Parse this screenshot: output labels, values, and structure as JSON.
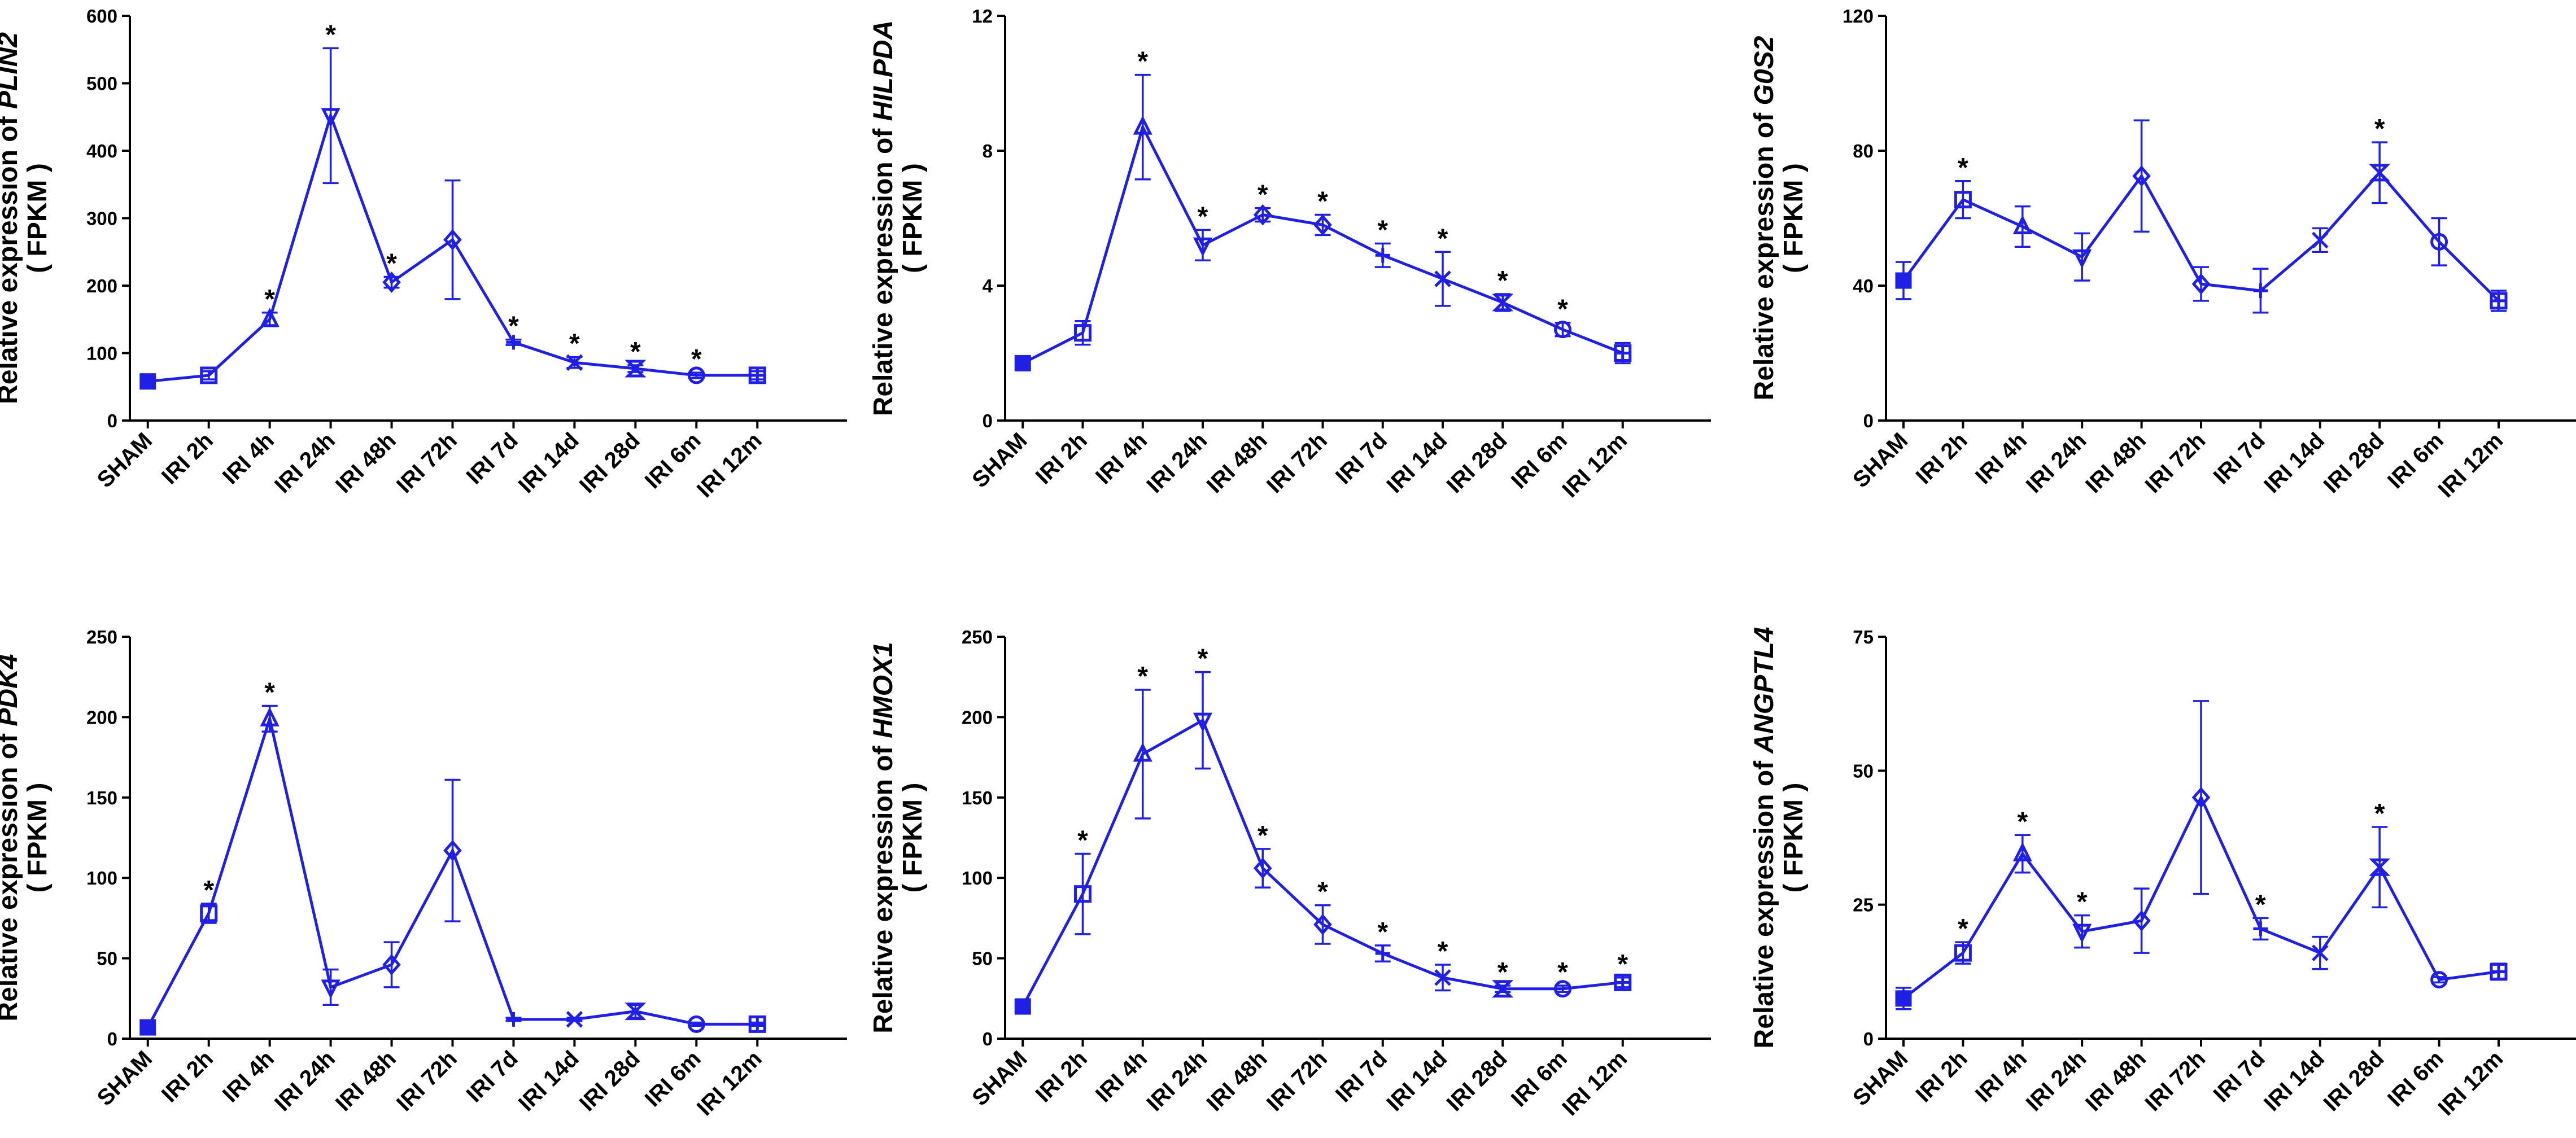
{
  "categories": [
    "SHAM",
    "IRI 2h",
    "IRI 4h",
    "IRI 24h",
    "IRI 48h",
    "IRI 72h",
    "IRI 7d",
    "IRI 14d",
    "IRI 28d",
    "IRI 6m",
    "IRI 12m"
  ],
  "colors": {
    "series": "#1f1fe6",
    "axis": "#000000"
  },
  "markers": [
    "square-filled",
    "square",
    "triangle-up",
    "triangle-down",
    "diamond",
    "diamond",
    "cross",
    "x",
    "hourglass",
    "circle",
    "square-cross"
  ],
  "chart_data": [
    {
      "type": "line",
      "ylabel_prefix": "Relative expression of ",
      "gene": "PLIN2",
      "ylabel_unit": "( FPKM )",
      "ylim": [
        0,
        600
      ],
      "yticks": [
        "0",
        "100",
        "200",
        "300",
        "400",
        "500",
        "600"
      ],
      "categories": [
        "SHAM",
        "IRI 2h",
        "IRI 4h",
        "IRI 24h",
        "IRI 48h",
        "IRI 72h",
        "IRI 7d",
        "IRI 14d",
        "IRI 28d",
        "IRI 6m",
        "IRI 12m"
      ],
      "values": [
        58,
        67,
        150,
        452,
        205,
        268,
        116,
        86,
        77,
        67,
        67
      ],
      "errors": [
        4,
        6,
        10,
        100,
        8,
        88,
        4,
        8,
        5,
        4,
        6
      ],
      "significant": [
        false,
        false,
        true,
        true,
        true,
        false,
        true,
        true,
        true,
        true,
        false
      ],
      "sig_label": "*"
    },
    {
      "type": "line",
      "ylabel_prefix": "Relative expression of ",
      "gene": "HILPDA",
      "ylabel_unit": "( FPKM )",
      "ylim": [
        0,
        12
      ],
      "yticks": [
        "0",
        "4",
        "8",
        "12"
      ],
      "categories": [
        "SHAM",
        "IRI 2h",
        "IRI 4h",
        "IRI 24h",
        "IRI 48h",
        "IRI 72h",
        "IRI 7d",
        "IRI 14d",
        "IRI 28d",
        "IRI 6m",
        "IRI 12m"
      ],
      "values": [
        1.7,
        2.6,
        8.7,
        5.2,
        6.1,
        5.8,
        4.9,
        4.2,
        3.5,
        2.7,
        2.0
      ],
      "errors": [
        0.1,
        0.35,
        1.55,
        0.45,
        0.2,
        0.3,
        0.35,
        0.8,
        0.25,
        0.2,
        0.3
      ],
      "significant": [
        false,
        false,
        true,
        true,
        true,
        true,
        true,
        true,
        true,
        true,
        false
      ],
      "sig_label": "*"
    },
    {
      "type": "line",
      "ylabel_prefix": "Relative expression of ",
      "gene": "G0S2",
      "ylabel_unit": "( FPKM )",
      "ylim": [
        0,
        120
      ],
      "yticks": [
        "0",
        "40",
        "80",
        "120"
      ],
      "categories": [
        "SHAM",
        "IRI 2h",
        "IRI 4h",
        "IRI 24h",
        "IRI 48h",
        "IRI 72h",
        "IRI 7d",
        "IRI 14d",
        "IRI 28d",
        "IRI 6m",
        "IRI 12m"
      ],
      "values": [
        41.5,
        65.5,
        57.5,
        48.5,
        72.5,
        40.5,
        38.5,
        53.5,
        73.5,
        53,
        35.5
      ],
      "errors": [
        5.5,
        5.5,
        6,
        7,
        16.5,
        5,
        6.5,
        3.5,
        9,
        7,
        3
      ],
      "significant": [
        false,
        true,
        false,
        false,
        false,
        false,
        false,
        false,
        true,
        false,
        false
      ],
      "sig_label": "*"
    },
    {
      "type": "line",
      "ylabel_prefix": "Relative expression of ",
      "gene": "PDK4",
      "ylabel_unit": "( FPKM )",
      "ylim": [
        0,
        250
      ],
      "yticks": [
        "0",
        "50",
        "100",
        "150",
        "200",
        "250"
      ],
      "categories": [
        "SHAM",
        "IRI 2h",
        "IRI 4h",
        "IRI 24h",
        "IRI 48h",
        "IRI 72h",
        "IRI 7d",
        "IRI 14d",
        "IRI 28d",
        "IRI 6m",
        "IRI 12m"
      ],
      "values": [
        7,
        78,
        199,
        32,
        46,
        117,
        12,
        12,
        17,
        9,
        9
      ],
      "errors": [
        1,
        6,
        8,
        11,
        14,
        44,
        1,
        1,
        4,
        1,
        1
      ],
      "significant": [
        false,
        true,
        true,
        false,
        false,
        false,
        false,
        false,
        false,
        false,
        false
      ],
      "sig_label": "*"
    },
    {
      "type": "line",
      "ylabel_prefix": "Relative expression of ",
      "gene": "HMOX1",
      "ylabel_unit": "( FPKM )",
      "ylim": [
        0,
        250
      ],
      "yticks": [
        "0",
        "50",
        "100",
        "150",
        "200",
        "250"
      ],
      "categories": [
        "SHAM",
        "IRI 2h",
        "IRI 4h",
        "IRI 24h",
        "IRI 48h",
        "IRI 72h",
        "IRI 7d",
        "IRI 14d",
        "IRI 28d",
        "IRI 6m",
        "IRI 12m"
      ],
      "values": [
        20,
        90,
        177,
        198,
        106,
        71,
        53,
        38,
        31,
        31,
        35
      ],
      "errors": [
        1,
        25,
        40,
        30,
        12,
        12,
        5,
        8,
        2,
        2,
        3
      ],
      "significant": [
        false,
        true,
        true,
        true,
        true,
        true,
        true,
        true,
        true,
        true,
        true
      ],
      "sig_label": "*"
    },
    {
      "type": "line",
      "ylabel_prefix": "Relative expression of ",
      "gene": "ANGPTL4",
      "ylabel_unit": "( FPKM )",
      "ylim": [
        0,
        75
      ],
      "yticks": [
        "0",
        "25",
        "50",
        "75"
      ],
      "categories": [
        "SHAM",
        "IRI 2h",
        "IRI 4h",
        "IRI 24h",
        "IRI 48h",
        "IRI 72h",
        "IRI 7d",
        "IRI 14d",
        "IRI 28d",
        "IRI 6m",
        "IRI 12m"
      ],
      "values": [
        7.5,
        16,
        34.5,
        20,
        22,
        45,
        20.5,
        16,
        32,
        11,
        12.5
      ],
      "errors": [
        2,
        2,
        3.5,
        3,
        6,
        18,
        2,
        3,
        7.5,
        0.5,
        1.5
      ],
      "significant": [
        false,
        true,
        true,
        true,
        false,
        false,
        true,
        false,
        true,
        false,
        false
      ],
      "sig_label": "*"
    }
  ]
}
